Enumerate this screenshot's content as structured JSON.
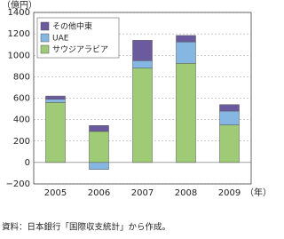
{
  "chart_data": {
    "type": "stacked_bar",
    "y_unit_label": "（億円）",
    "x_unit_label": "（年）",
    "source": "資料：日本銀行「国際収支統計」から作成。",
    "categories": [
      "2005",
      "2006",
      "2007",
      "2008",
      "2009"
    ],
    "series": [
      {
        "name": "サウジアラビア",
        "color": "#9fcb76",
        "values": [
          560,
          290,
          880,
          925,
          350
        ]
      },
      {
        "name": "UAE",
        "color": "#86b6e2",
        "values": [
          30,
          -65,
          70,
          200,
          130
        ]
      },
      {
        "name": "その他中東",
        "color": "#6b5a9e",
        "values": [
          30,
          55,
          190,
          60,
          60
        ]
      }
    ],
    "ylim": [
      -200,
      1400
    ],
    "yticks": [
      {
        "value": -200,
        "label": "−200"
      },
      0,
      200,
      400,
      600,
      800,
      1000,
      1200,
      1400
    ],
    "grid": true,
    "legend": "top-left"
  }
}
